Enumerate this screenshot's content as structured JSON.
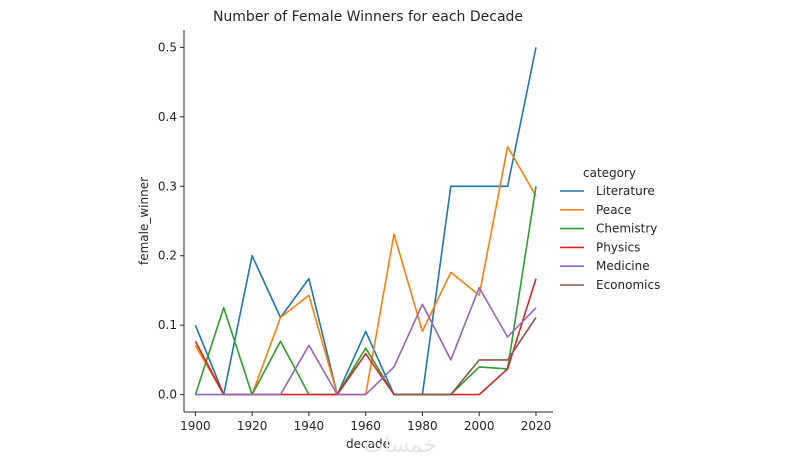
{
  "chart_data": {
    "type": "line",
    "title": "Number of Female Winners for each Decade",
    "xlabel": "decade",
    "ylabel": "female_winner",
    "x": [
      1900,
      1910,
      1920,
      1930,
      1940,
      1950,
      1960,
      1970,
      1980,
      1990,
      2000,
      2010,
      2020
    ],
    "xticks": [
      "1900",
      "1920",
      "1940",
      "1960",
      "1980",
      "2000",
      "2020"
    ],
    "yticks": [
      "0.0",
      "0.1",
      "0.2",
      "0.3",
      "0.4",
      "0.5"
    ],
    "xlim": [
      1896,
      2026
    ],
    "ylim": [
      -0.025,
      0.525
    ],
    "legend_title": "category",
    "legend_position": "right",
    "grid": false,
    "series": [
      {
        "name": "Literature",
        "color": "#1f77b4",
        "values": [
          0.1,
          0.0,
          0.2,
          0.111,
          0.167,
          0.0,
          0.091,
          0.0,
          0.0,
          0.3,
          0.3,
          0.3,
          0.5
        ]
      },
      {
        "name": "Peace",
        "color": "#ff7f0e",
        "values": [
          0.071,
          0.0,
          0.0,
          0.111,
          0.143,
          0.0,
          0.0,
          0.231,
          0.091,
          0.176,
          0.143,
          0.357,
          0.286
        ]
      },
      {
        "name": "Chemistry",
        "color": "#2ca02c",
        "values": [
          0.0,
          0.125,
          0.0,
          0.077,
          0.0,
          0.0,
          0.067,
          0.0,
          0.0,
          0.0,
          0.04,
          0.037,
          0.3
        ]
      },
      {
        "name": "Physics",
        "color": "#d62728",
        "values": [
          0.077,
          0.0,
          0.0,
          0.0,
          0.0,
          0.0,
          0.059,
          0.0,
          0.0,
          0.0,
          0.0,
          0.037,
          0.167
        ]
      },
      {
        "name": "Medicine",
        "color": "#9467bd",
        "values": [
          0.0,
          0.0,
          0.0,
          0.0,
          0.071,
          0.0,
          0.0,
          0.04,
          0.13,
          0.05,
          0.154,
          0.083,
          0.125
        ]
      },
      {
        "name": "Economics",
        "color": "#8c564b",
        "values": [
          null,
          null,
          null,
          null,
          null,
          null,
          null,
          0.0,
          0.0,
          0.0,
          0.05,
          0.05,
          0.111
        ]
      }
    ]
  },
  "watermark": "خمسات"
}
